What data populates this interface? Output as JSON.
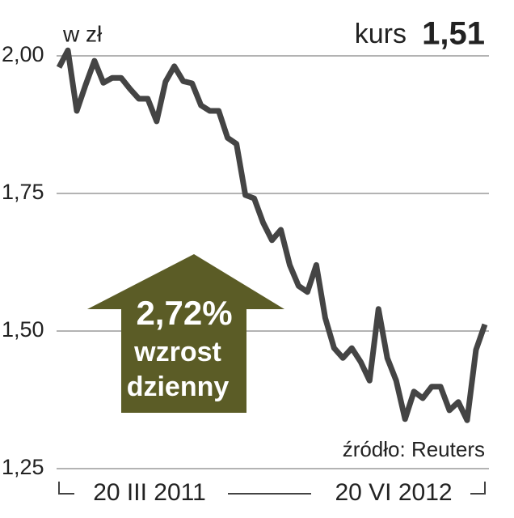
{
  "chart_data": {
    "type": "line",
    "unit": "w zł",
    "headline_label": "kurs",
    "headline_value": "1,51",
    "annotation": {
      "value": "2,72%",
      "line1": "wzrost",
      "line2": "dzienny"
    },
    "source": "źródło: Reuters",
    "categories": [
      "20 III 2011",
      null,
      null,
      null,
      null,
      null,
      null,
      null,
      null,
      null,
      null,
      null,
      null,
      null,
      null,
      null,
      null,
      null,
      null,
      null,
      null,
      null,
      null,
      null,
      null,
      null,
      null,
      null,
      null,
      null,
      null,
      null,
      null,
      null,
      null,
      null,
      null,
      null,
      null,
      null,
      null,
      null,
      null,
      null,
      null,
      null,
      null,
      null,
      "20 VI 2012"
    ],
    "series": [
      {
        "name": "kurs",
        "color": "#444444",
        "values": [
          1.979,
          2.01,
          1.9,
          1.947,
          1.991,
          1.951,
          1.96,
          1.96,
          1.94,
          1.922,
          1.922,
          1.881,
          1.953,
          1.981,
          1.954,
          1.95,
          1.91,
          1.9,
          1.9,
          1.851,
          1.84,
          1.747,
          1.741,
          1.697,
          1.665,
          1.684,
          1.62,
          1.582,
          1.571,
          1.62,
          1.524,
          1.469,
          1.451,
          1.469,
          1.444,
          1.41,
          1.54,
          1.451,
          1.41,
          1.34,
          1.39,
          1.378,
          1.399,
          1.399,
          1.356,
          1.371,
          1.338,
          1.466,
          1.512
        ]
      }
    ],
    "ylim": [
      1.25,
      2.0
    ],
    "yticks": [
      {
        "value": 2.0,
        "label": "2,00"
      },
      {
        "value": 1.75,
        "label": "1,75"
      },
      {
        "value": 1.5,
        "label": "1,50"
      },
      {
        "value": 1.25,
        "label": "1,25"
      }
    ],
    "grid": true
  }
}
